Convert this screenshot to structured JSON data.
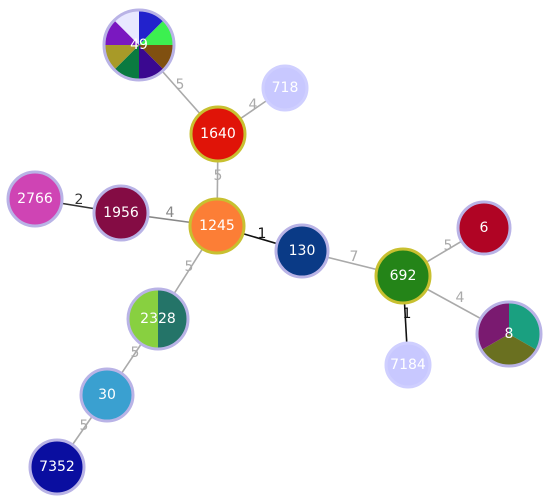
{
  "nodes": [
    {
      "id": "49",
      "label": "49",
      "ring": "#b9b3e6",
      "slices": [
        "#2222cc",
        "#3cf050",
        "#805010",
        "#3a0890",
        "#0a7a40",
        "#a89a28",
        "#7a18c0",
        "#e8e8ff"
      ]
    },
    {
      "id": "718",
      "label": "718",
      "ring": "#cfcfff",
      "slices": [
        "#c8c8ff"
      ]
    },
    {
      "id": "1640",
      "label": "1640",
      "ring": "#c8c030",
      "slices": [
        "#e01408"
      ]
    },
    {
      "id": "2766",
      "label": "2766",
      "ring": "#b9b3e6",
      "slices": [
        "#cf44b4"
      ]
    },
    {
      "id": "1956",
      "label": "1956",
      "ring": "#b9b3e6",
      "slices": [
        "#840c44"
      ]
    },
    {
      "id": "1245",
      "label": "1245",
      "ring": "#c8c030",
      "slices": [
        "#fc7e36"
      ]
    },
    {
      "id": "130",
      "label": "130",
      "ring": "#b9b3e6",
      "slices": [
        "#0a3a86"
      ]
    },
    {
      "id": "692",
      "label": "692",
      "ring": "#c8c030",
      "slices": [
        "#248418"
      ]
    },
    {
      "id": "6",
      "label": "6",
      "ring": "#b9b3e6",
      "slices": [
        "#b00424"
      ]
    },
    {
      "id": "8",
      "label": "8",
      "ring": "#b9b3e6",
      "slices": [
        "#1aa080",
        "#6a7020",
        "#7a1a70"
      ]
    },
    {
      "id": "7184",
      "label": "7184",
      "ring": "#cfcfff",
      "slices": [
        "#c8c8ff"
      ]
    },
    {
      "id": "2328",
      "label": "2328",
      "ring": "#b9b3e6",
      "slices": [
        "#247468",
        "#88d040"
      ]
    },
    {
      "id": "30",
      "label": "30",
      "ring": "#b9b3e6",
      "slices": [
        "#3aa0d0"
      ]
    },
    {
      "id": "7352",
      "label": "7352",
      "ring": "#b9b3e6",
      "slices": [
        "#0a0ea0"
      ]
    }
  ],
  "edges": [
    {
      "from": "49",
      "to": "1640",
      "label": "5",
      "color": "#aaaaaa"
    },
    {
      "from": "718",
      "to": "1640",
      "label": "4",
      "color": "#aaaaaa"
    },
    {
      "from": "1640",
      "to": "1245",
      "label": "5",
      "color": "#aaaaaa"
    },
    {
      "from": "2766",
      "to": "1956",
      "label": "2",
      "color": "#333333"
    },
    {
      "from": "1956",
      "to": "1245",
      "label": "4",
      "color": "#888888"
    },
    {
      "from": "1245",
      "to": "130",
      "label": "1",
      "color": "#111111"
    },
    {
      "from": "1245",
      "to": "2328",
      "label": "5",
      "color": "#aaaaaa"
    },
    {
      "from": "130",
      "to": "692",
      "label": "7",
      "color": "#aaaaaa"
    },
    {
      "from": "692",
      "to": "6",
      "label": "5",
      "color": "#aaaaaa"
    },
    {
      "from": "692",
      "to": "8",
      "label": "4",
      "color": "#aaaaaa"
    },
    {
      "from": "692",
      "to": "7184",
      "label": "1",
      "color": "#111111"
    },
    {
      "from": "2328",
      "to": "30",
      "label": "5",
      "color": "#aaaaaa"
    },
    {
      "from": "30",
      "to": "7352",
      "label": "5",
      "color": "#aaaaaa"
    }
  ]
}
